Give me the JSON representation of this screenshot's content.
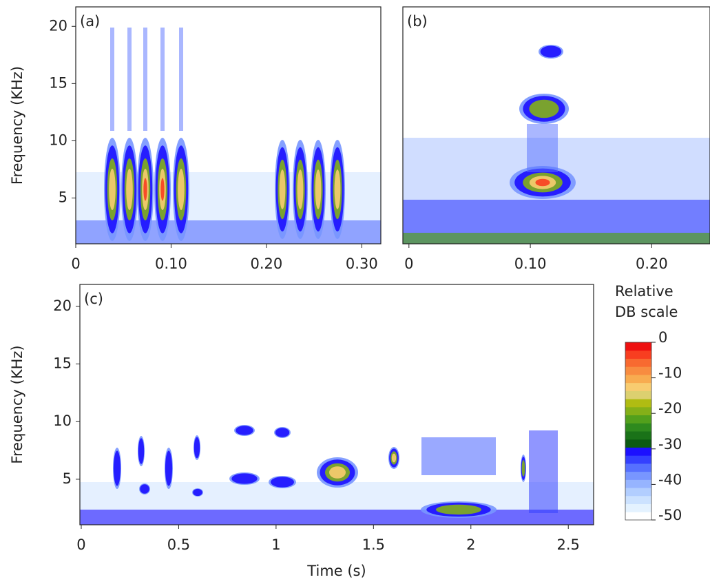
{
  "chart_data": [
    {
      "type": "spectrogram",
      "panel_label": "(a)",
      "ylabel": "Frequency (KHz)",
      "xlim": [
        0,
        0.32
      ],
      "xticks": [
        0,
        {
          "value": 0.1,
          "label": "0.10"
        },
        {
          "value": 0.2,
          "label": "0.20"
        },
        {
          "value": 0.3,
          "label": "0.30"
        }
      ],
      "ylim": [
        1,
        21.7
      ],
      "yticks": [
        5,
        10,
        15,
        20
      ]
    },
    {
      "type": "spectrogram",
      "panel_label": "(b)",
      "xlim": [
        -0.005,
        0.248
      ],
      "xticks": [
        0,
        {
          "value": 0.1,
          "label": "0.10"
        },
        {
          "value": 0.2,
          "label": "0.20"
        }
      ],
      "ylim": [
        1,
        21.7
      ]
    },
    {
      "type": "spectrogram",
      "panel_label": "(c)",
      "ylabel": "Frequency (KHz)",
      "xlabel": "Time (s)",
      "xlim": [
        -0.007,
        2.63
      ],
      "xticks": [
        0,
        0.5,
        1,
        1.5,
        2,
        2.5
      ],
      "ylim": [
        1.05,
        21.9
      ],
      "yticks": [
        5,
        10,
        15,
        20
      ]
    },
    {
      "type": "colorbar",
      "title": "Relative DB scale",
      "ylim": [
        -50,
        0
      ],
      "yticks": [
        0,
        -10,
        -20,
        -30,
        -40,
        -50
      ],
      "colors": [
        "#ffffff",
        "#e4f2ff",
        "#cce2ff",
        "#b2ceff",
        "#96b4ff",
        "#7896ff",
        "#5670ff",
        "#3440ff",
        "#1c10ff",
        "#0c5a12",
        "#1a7218",
        "#2e8a1e",
        "#52a01c",
        "#84b018",
        "#b0bc12",
        "#dcd070",
        "#f8cc70",
        "#f8ac50",
        "#f88c40",
        "#f86a30",
        "#f83e20",
        "#ee1010"
      ]
    }
  ]
}
